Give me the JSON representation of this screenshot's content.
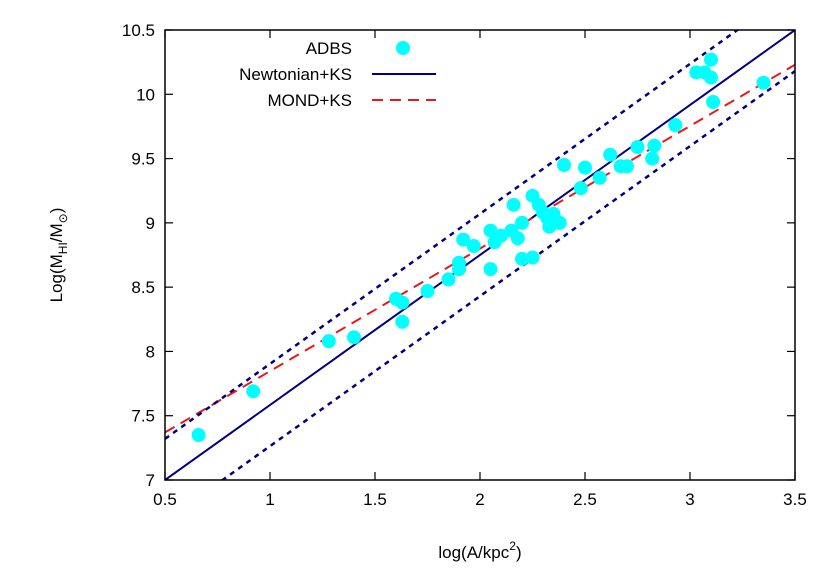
{
  "chart_data": {
    "type": "scatter",
    "xlabel": "log(A/kpc",
    "xlabel_sup": "2",
    "xlabel_end": ")",
    "ylabel": "Log(M",
    "ylabel_sub": "HI",
    "ylabel_mid": "/M",
    "ylabel_sub2": "⊙",
    "ylabel_end": ")",
    "xlim": [
      0.5,
      3.5
    ],
    "ylim": [
      7,
      10.5
    ],
    "xticks": [
      "0.5",
      "1",
      "1.5",
      "2",
      "2.5",
      "3",
      "3.5"
    ],
    "yticks": [
      "7",
      "7.5",
      "8",
      "8.5",
      "9",
      "9.5",
      "10",
      "10.5"
    ],
    "legend_position": "top-left",
    "colors": {
      "scatter": "#00ffff",
      "newtonian": "#000080",
      "mond": "#e41a1c",
      "bounds": "#000080"
    },
    "series": [
      {
        "name": "ADBS",
        "kind": "scatter",
        "points": [
          [
            0.66,
            7.35
          ],
          [
            0.92,
            7.69
          ],
          [
            1.28,
            8.08
          ],
          [
            1.4,
            8.11
          ],
          [
            1.6,
            8.41
          ],
          [
            1.63,
            8.38
          ],
          [
            1.63,
            8.23
          ],
          [
            1.75,
            8.47
          ],
          [
            1.85,
            8.56
          ],
          [
            1.9,
            8.69
          ],
          [
            1.9,
            8.64
          ],
          [
            1.92,
            8.87
          ],
          [
            1.97,
            8.82
          ],
          [
            2.05,
            8.64
          ],
          [
            2.05,
            8.94
          ],
          [
            2.07,
            8.85
          ],
          [
            2.1,
            8.9
          ],
          [
            2.15,
            8.94
          ],
          [
            2.18,
            8.88
          ],
          [
            2.16,
            9.14
          ],
          [
            2.2,
            9.0
          ],
          [
            2.2,
            8.72
          ],
          [
            2.25,
            8.73
          ],
          [
            2.25,
            9.21
          ],
          [
            2.28,
            9.14
          ],
          [
            2.3,
            9.08
          ],
          [
            2.32,
            9.04
          ],
          [
            2.33,
            8.97
          ],
          [
            2.35,
            9.07
          ],
          [
            2.38,
            9.0
          ],
          [
            2.4,
            9.45
          ],
          [
            2.48,
            9.27
          ],
          [
            2.5,
            9.43
          ],
          [
            2.57,
            9.35
          ],
          [
            2.62,
            9.53
          ],
          [
            2.67,
            9.44
          ],
          [
            2.7,
            9.44
          ],
          [
            2.75,
            9.59
          ],
          [
            2.82,
            9.5
          ],
          [
            2.83,
            9.6
          ],
          [
            2.93,
            9.76
          ],
          [
            3.03,
            10.17
          ],
          [
            3.07,
            10.17
          ],
          [
            3.1,
            10.13
          ],
          [
            3.1,
            10.27
          ],
          [
            3.11,
            9.94
          ],
          [
            3.35,
            10.09
          ]
        ]
      },
      {
        "name": "Newtonian+KS",
        "kind": "line",
        "x": [
          0.5,
          3.5
        ],
        "y": [
          7.0,
          10.5
        ]
      },
      {
        "name": "MOND+KS",
        "kind": "dashed-line",
        "x": [
          0.5,
          3.5
        ],
        "y": [
          7.37,
          10.23
        ]
      },
      {
        "name": "",
        "kind": "dotted-line",
        "x": [
          0.5,
          3.5
        ],
        "y": [
          7.32,
          10.82
        ]
      },
      {
        "name": "",
        "kind": "dotted-line",
        "x": [
          0.5,
          3.5
        ],
        "y": [
          6.68,
          10.18
        ]
      }
    ]
  }
}
